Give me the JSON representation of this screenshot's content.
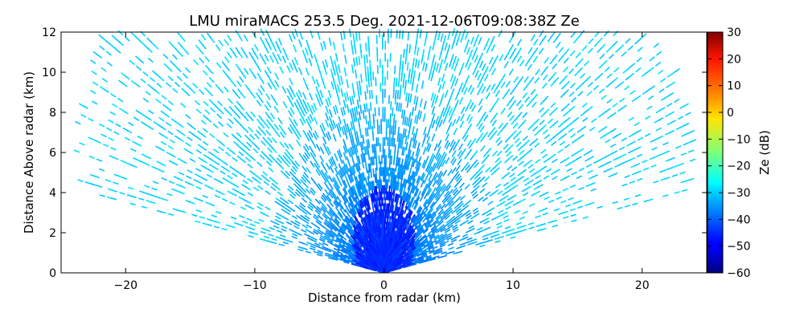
{
  "chart_data": {
    "type": "heatmap",
    "title": "LMU miraMACS 253.5 Deg. 2021-12-06T09:08:38Z  Ze",
    "xlabel": "Distance from radar (km)",
    "ylabel": "Distance Above radar  (km)",
    "xlim": [
      -25,
      25
    ],
    "ylim": [
      0,
      12
    ],
    "xticks": [
      "−20",
      "−10",
      "0",
      "10",
      "20"
    ],
    "xtick_values": [
      -20,
      -10,
      0,
      10,
      20
    ],
    "yticks": [
      "0",
      "2",
      "4",
      "6",
      "8",
      "10",
      "12"
    ],
    "ytick_values": [
      0,
      2,
      4,
      6,
      8,
      10,
      12
    ],
    "grid": false,
    "colorbar": {
      "label": "Ze (dB)",
      "range": [
        -60,
        30
      ],
      "ticks": [
        "30",
        "20",
        "10",
        "0",
        "−10",
        "−20",
        "−30",
        "−40",
        "−50",
        "−60"
      ],
      "tick_values": [
        30,
        20,
        10,
        0,
        -10,
        -20,
        -30,
        -40,
        -50,
        -60
      ],
      "colormap": "jet"
    },
    "scan": {
      "max_range_km": 25,
      "min_elevation_deg": 10,
      "max_elevation_deg": 170,
      "field": "Ze",
      "reflectivity_far_dB": -30,
      "reflectivity_mid_dB": -38,
      "reflectivity_near_dB": -50,
      "hotspot": {
        "x": 0,
        "y": 1.8,
        "value_dB": -45
      }
    }
  }
}
